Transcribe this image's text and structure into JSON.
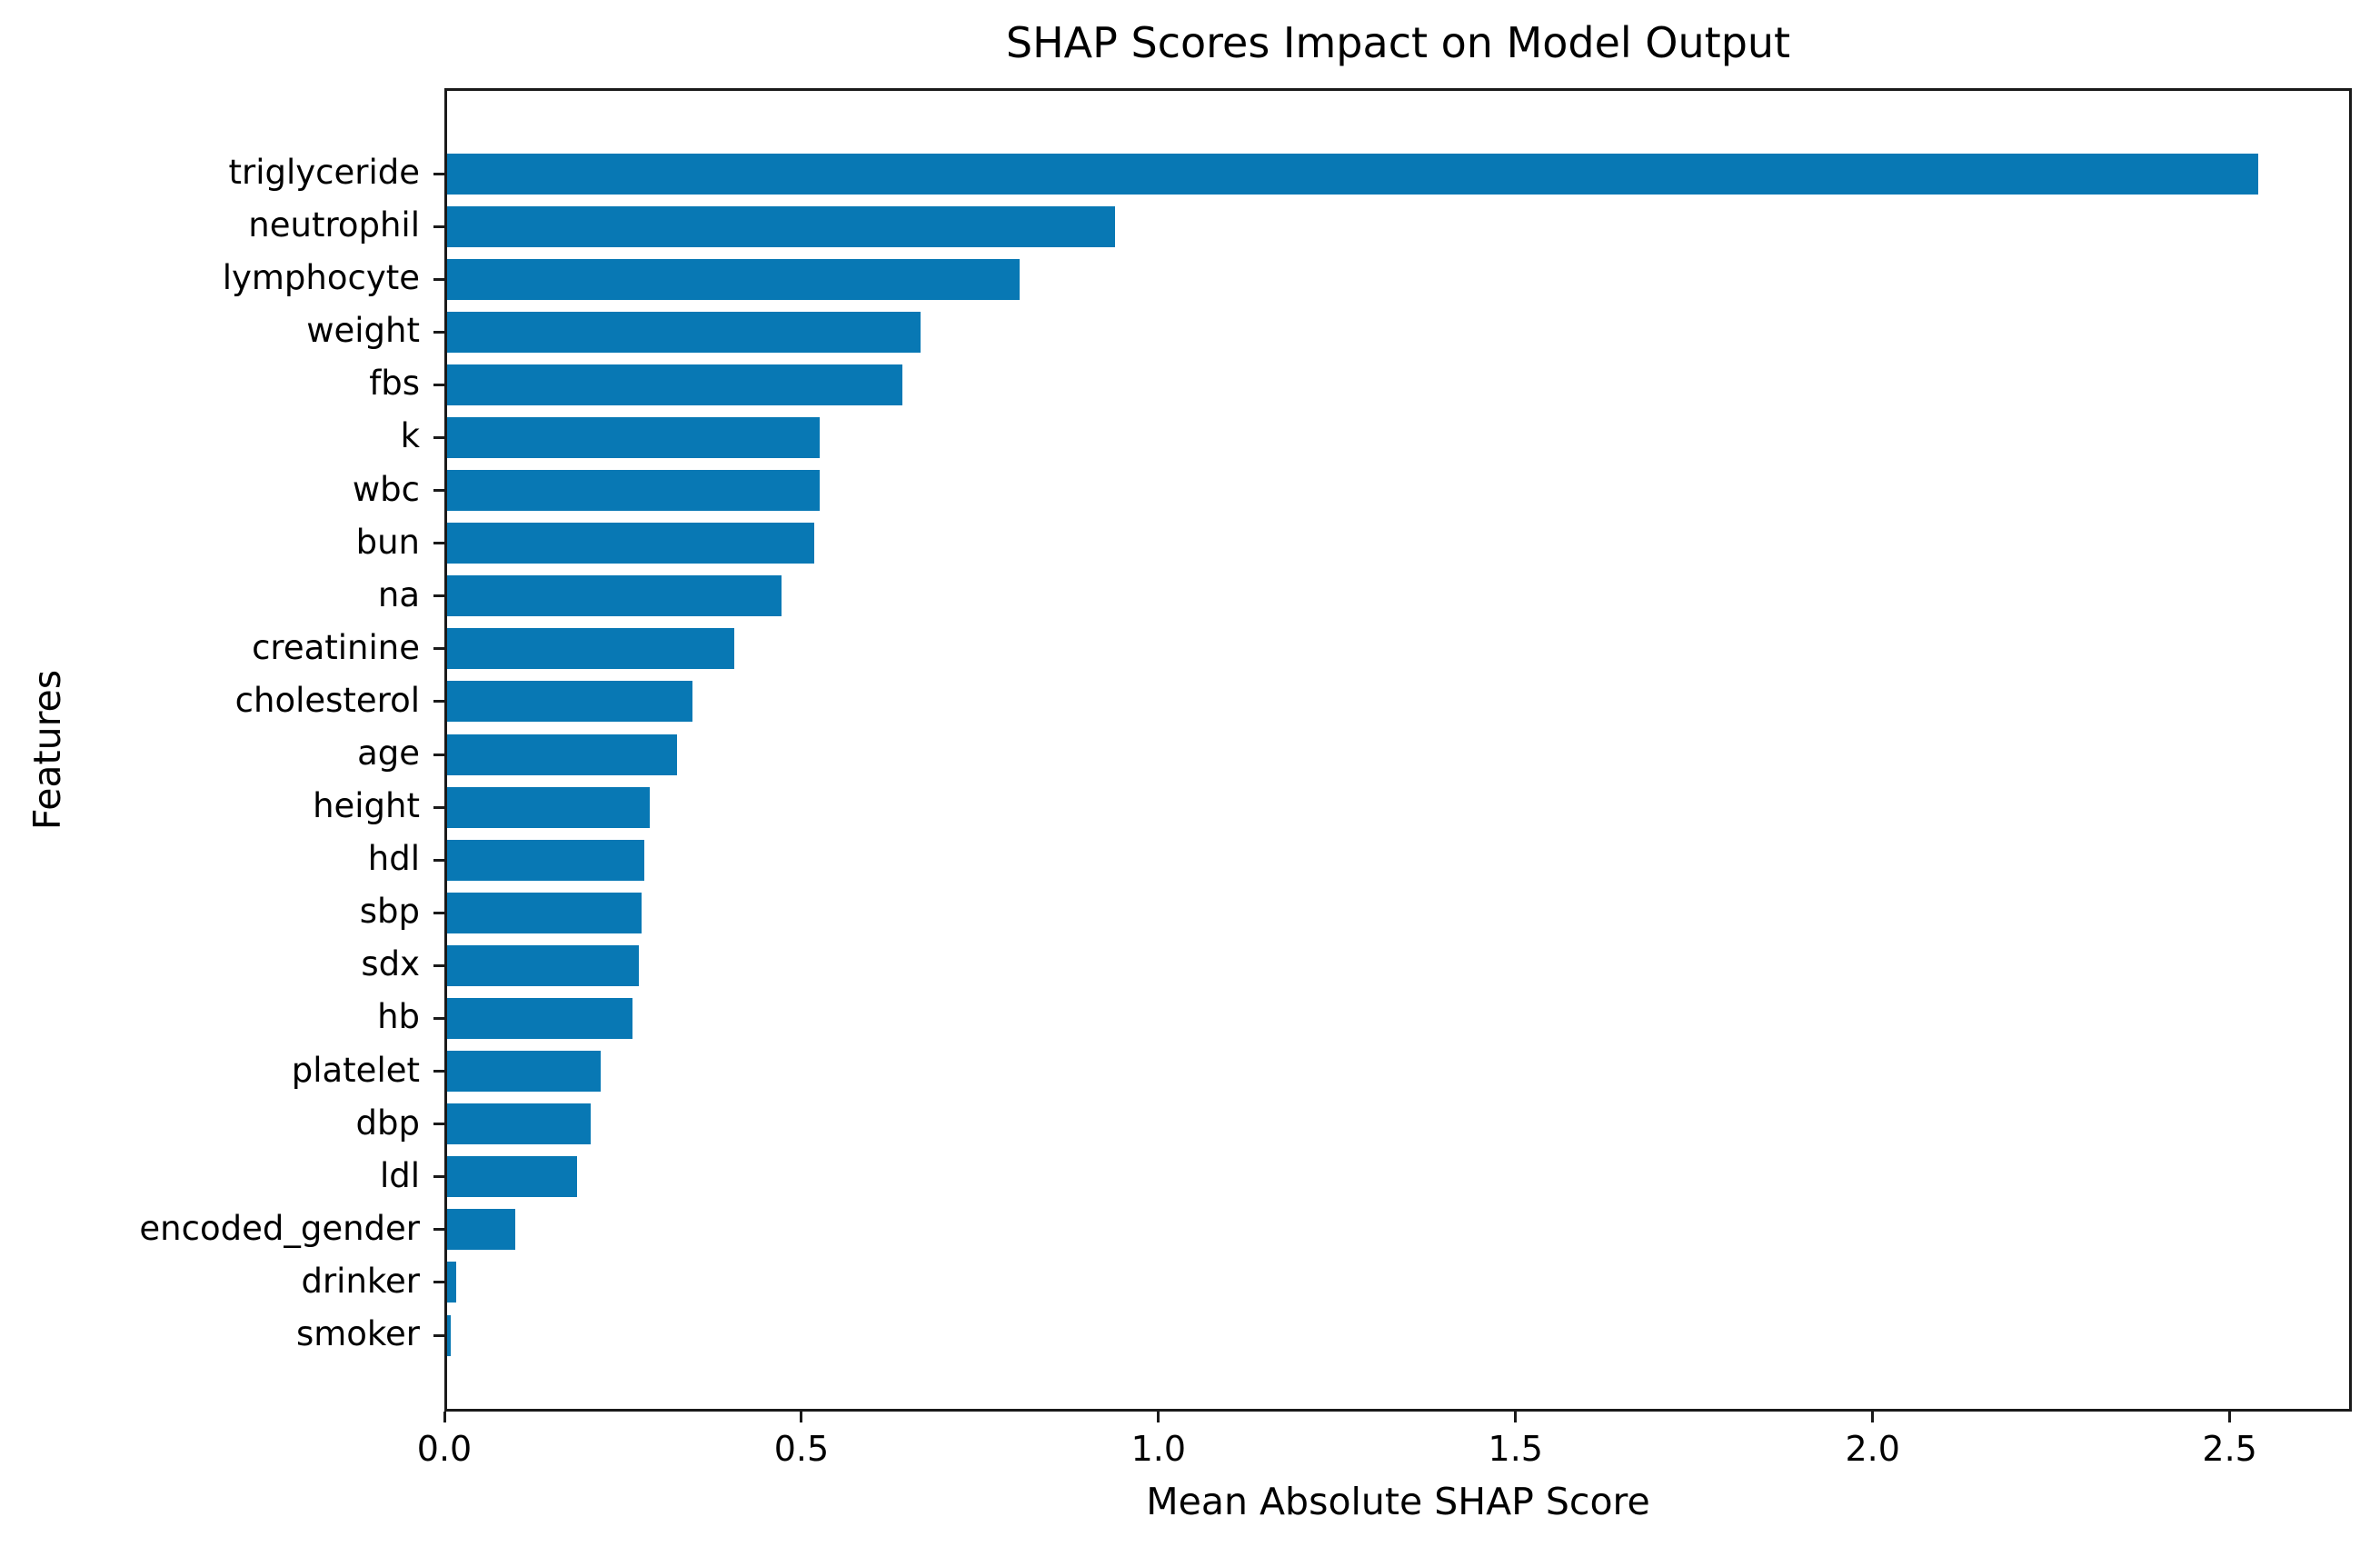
{
  "chart_data": {
    "type": "bar",
    "orientation": "horizontal",
    "title": "SHAP Scores Impact on Model Output",
    "xlabel": "Mean Absolute SHAP Score",
    "ylabel": "Features",
    "categories": [
      "triglyceride",
      "neutrophil",
      "lymphocyte",
      "weight",
      "fbs",
      "k",
      "wbc",
      "bun",
      "na",
      "creatinine",
      "cholesterol",
      "age",
      "height",
      "hdl",
      "sbp",
      "sdx",
      "hb",
      "platelet",
      "dbp",
      "ldl",
      "encoded_gender",
      "drinker",
      "smoker"
    ],
    "values": [
      2.543,
      0.938,
      0.804,
      0.665,
      0.639,
      0.523,
      0.523,
      0.516,
      0.47,
      0.403,
      0.345,
      0.323,
      0.284,
      0.277,
      0.273,
      0.269,
      0.26,
      0.216,
      0.201,
      0.183,
      0.096,
      0.013,
      0.005
    ],
    "xticks": {
      "labels": [
        "0.0",
        "0.5",
        "1.0",
        "1.5",
        "2.0",
        "2.5"
      ],
      "values": [
        0.0,
        0.5,
        1.0,
        1.5,
        2.0,
        2.5
      ]
    },
    "xlim": [
      0,
      2.671
    ],
    "grid": false,
    "legend": "none",
    "bar_color": "#0878b4",
    "spine_color": "#1a1a1a",
    "background_color": "#ffffff"
  }
}
